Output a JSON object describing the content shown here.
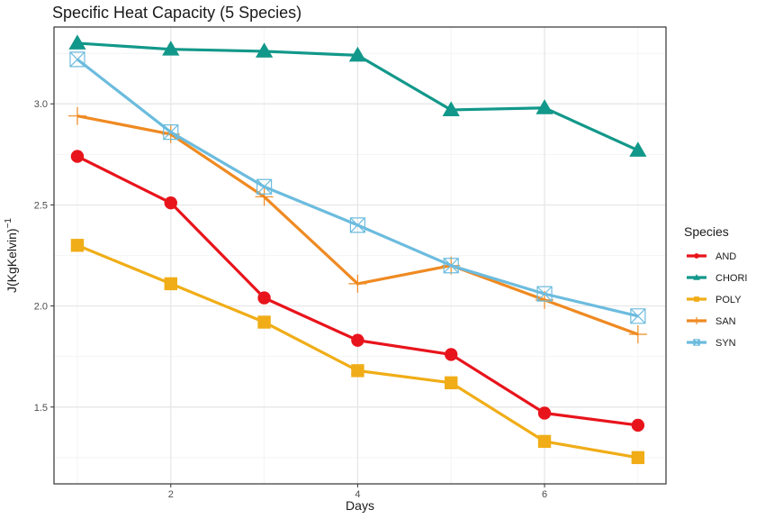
{
  "chart_data": {
    "type": "line",
    "title": "Specific Heat Capacity (5 Species)",
    "xlabel": "Days",
    "ylabel_main": "J(KgKelvin)",
    "ylabel_sup": "−1",
    "xlim": [
      0.75,
      7.3
    ],
    "ylim": [
      1.12,
      3.38
    ],
    "x_ticks": [
      2,
      4,
      6
    ],
    "x_tick_labels": [
      "2",
      "4",
      "6"
    ],
    "y_ticks": [
      1.5,
      2.0,
      2.5,
      3.0
    ],
    "y_tick_labels": [
      "1.5",
      "2.0",
      "2.5",
      "3.0"
    ],
    "grid": true,
    "legend_title": "Species",
    "legend_position": "right",
    "x": [
      1,
      2,
      3,
      4,
      5,
      6,
      7
    ],
    "series": [
      {
        "name": "AND",
        "color": "#e8141c",
        "marker": "circle",
        "values": [
          2.74,
          2.51,
          2.04,
          1.83,
          1.76,
          1.47,
          1.41
        ]
      },
      {
        "name": "CHORI",
        "color": "#12988a",
        "marker": "triangle",
        "values": [
          3.3,
          3.27,
          3.26,
          3.24,
          2.97,
          2.98,
          2.77
        ]
      },
      {
        "name": "POLY",
        "color": "#f0ad17",
        "marker": "square",
        "values": [
          2.3,
          2.11,
          1.92,
          1.68,
          1.62,
          1.33,
          1.25
        ]
      },
      {
        "name": "SAN",
        "color": "#ef8a22",
        "marker": "plus",
        "values": [
          2.94,
          2.85,
          2.54,
          2.11,
          2.2,
          2.03,
          1.86
        ]
      },
      {
        "name": "SYN",
        "color": "#6cbcde",
        "marker": "boxx",
        "values": [
          3.22,
          2.86,
          2.59,
          2.4,
          2.2,
          2.06,
          1.95
        ]
      }
    ]
  }
}
